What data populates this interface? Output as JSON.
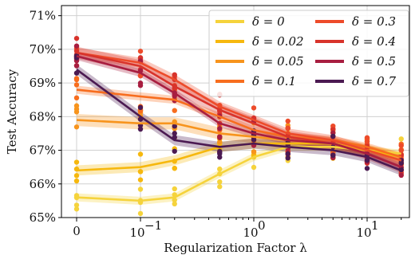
{
  "chart_data": {
    "type": "line",
    "xlabel": "Regularization Factor λ",
    "ylabel": "Test Accuracy",
    "x_scale": "symlog",
    "x_tick_labels": [
      "0",
      "10",
      "−1",
      "10",
      "0",
      "10",
      "1"
    ],
    "y_tick_labels": [
      "65%",
      "66%",
      "67%",
      "68%",
      "69%",
      "70%",
      "71%"
    ],
    "ylim": [
      65,
      71.3
    ],
    "grid": true,
    "legend_position": "top-right",
    "x": [
      0,
      0.1,
      0.2,
      0.5,
      1,
      2,
      5,
      10,
      20
    ],
    "series": [
      {
        "name": "δ = 0",
        "color": "#f5d33c",
        "values": [
          65.6,
          65.5,
          65.6,
          66.3,
          66.8,
          67.1,
          67.1,
          67.0,
          66.9
        ]
      },
      {
        "name": "δ = 0.02",
        "color": "#f6b80e",
        "values": [
          66.4,
          66.5,
          66.7,
          67.1,
          67.2,
          67.2,
          67.2,
          67.0,
          66.8
        ]
      },
      {
        "name": "δ = 0.05",
        "color": "#f7941d",
        "values": [
          67.9,
          67.8,
          67.8,
          67.5,
          67.4,
          67.3,
          67.2,
          67.0,
          66.7
        ]
      },
      {
        "name": "δ = 0.1",
        "color": "#f76d1e",
        "values": [
          68.8,
          68.6,
          68.5,
          68.0,
          67.6,
          67.4,
          67.3,
          67.1,
          66.8
        ]
      },
      {
        "name": "δ = 0.3",
        "color": "#ed4b2a",
        "values": [
          69.9,
          69.6,
          69.1,
          68.3,
          67.9,
          67.5,
          67.3,
          67.0,
          66.7
        ]
      },
      {
        "name": "δ = 0.4",
        "color": "#d8332b",
        "values": [
          69.9,
          69.5,
          68.9,
          68.2,
          67.8,
          67.4,
          67.2,
          66.9,
          66.5
        ]
      },
      {
        "name": "δ = 0.5",
        "color": "#a81e40",
        "values": [
          69.8,
          69.3,
          68.7,
          67.8,
          67.5,
          67.3,
          67.2,
          66.9,
          66.5
        ]
      },
      {
        "name": "δ = 0.7",
        "color": "#4b1a52",
        "values": [
          69.4,
          68.0,
          67.3,
          67.1,
          67.2,
          67.1,
          67.0,
          66.8,
          66.4
        ]
      }
    ]
  }
}
